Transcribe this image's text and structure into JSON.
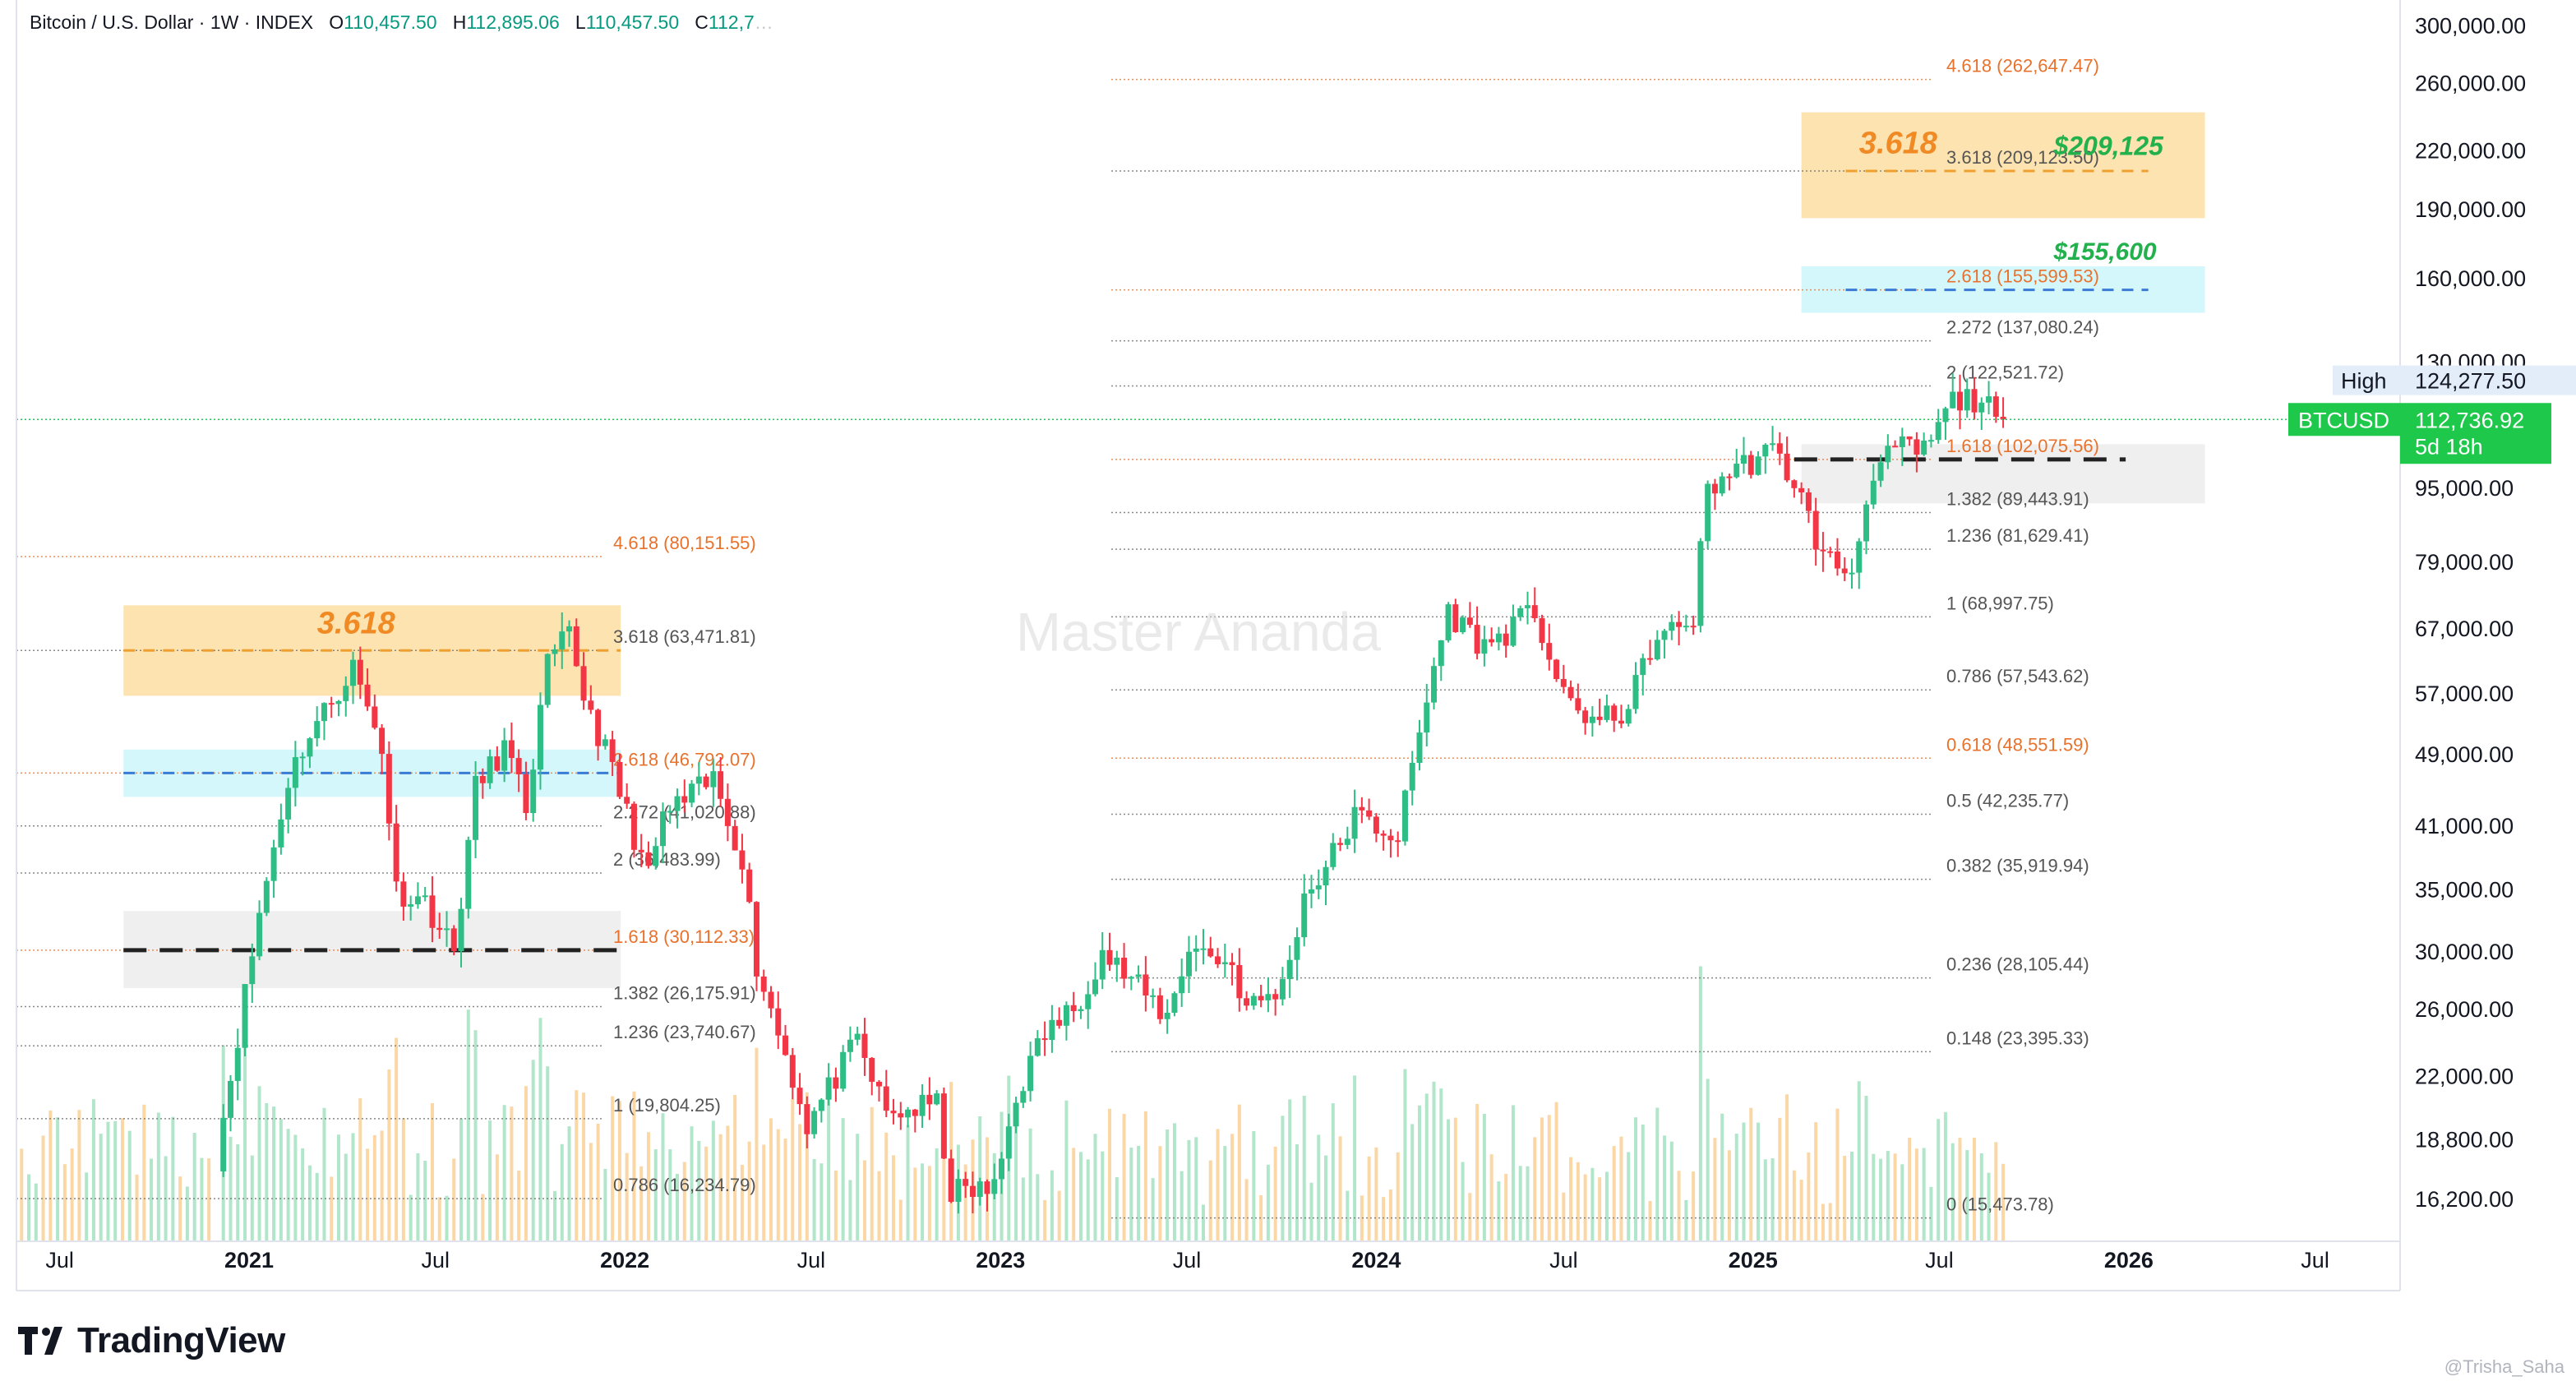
{
  "header": {
    "symbol": "Bitcoin / U.S. Dollar · 1W · INDEX",
    "open_label": "O",
    "open": "110,457.50",
    "high_label": "H",
    "high": "112,895.06",
    "low_label": "L",
    "low": "110,457.50",
    "close_label": "C",
    "close": "112,7"
  },
  "watermark": "Master Ananda",
  "brand": {
    "name": "TradingView"
  },
  "credit": "@Trisha_Saha",
  "colors": {
    "up": "#2ebd85",
    "down": "#f23645",
    "fib_orange": "#e8722c",
    "fib_gray": "#6b6b6b",
    "gold_zone": "#fde3b0",
    "cyan_zone": "#d4f7fb",
    "gray_zone": "#efefef",
    "price_line": "#22c55e",
    "green_text": "#22b14c"
  },
  "chart_data": {
    "type": "candlestick",
    "title": "Bitcoin / U.S. Dollar · 1W · INDEX",
    "y_scale": "log",
    "ylim": [
      14600,
      320000
    ],
    "xlim": [
      "2020-05-20",
      "2026-09-20"
    ],
    "y_ticks": [
      "300,000.00",
      "260,000.00",
      "220,000.00",
      "190,000.00",
      "160,000.00",
      "130,000.00",
      "95,000.00",
      "79,000.00",
      "67,000.00",
      "57,000.00",
      "49,000.00",
      "41,000.00",
      "35,000.00",
      "30,000.00",
      "26,000.00",
      "22,000.00",
      "18,800.00",
      "16,200.00"
    ],
    "x_ticks": [
      {
        "label": "Jul",
        "date": "2020-07-01",
        "bold": false
      },
      {
        "label": "2021",
        "date": "2021-01-01",
        "bold": true
      },
      {
        "label": "Jul",
        "date": "2021-07-01",
        "bold": false
      },
      {
        "label": "2022",
        "date": "2022-01-01",
        "bold": true
      },
      {
        "label": "Jul",
        "date": "2022-07-01",
        "bold": false
      },
      {
        "label": "2023",
        "date": "2023-01-01",
        "bold": true
      },
      {
        "label": "Jul",
        "date": "2023-07-01",
        "bold": false
      },
      {
        "label": "2024",
        "date": "2024-01-01",
        "bold": true
      },
      {
        "label": "Jul",
        "date": "2024-07-01",
        "bold": false
      },
      {
        "label": "2025",
        "date": "2025-01-01",
        "bold": true
      },
      {
        "label": "Jul",
        "date": "2025-07-01",
        "bold": false
      },
      {
        "label": "2026",
        "date": "2026-01-01",
        "bold": true
      },
      {
        "label": "Jul",
        "date": "2026-07-01",
        "bold": false
      }
    ],
    "price_anchors": [
      [
        "2020-11-30",
        18000
      ],
      [
        "2020-12-28",
        27000
      ],
      [
        "2021-01-11",
        33000
      ],
      [
        "2021-02-08",
        46000
      ],
      [
        "2021-02-22",
        50000
      ],
      [
        "2021-04-12",
        61000
      ],
      [
        "2021-04-26",
        55000
      ],
      [
        "2021-05-10",
        50000
      ],
      [
        "2021-05-24",
        35000
      ],
      [
        "2021-06-21",
        34000
      ],
      [
        "2021-07-19",
        30000
      ],
      [
        "2021-08-09",
        45000
      ],
      [
        "2021-09-06",
        50000
      ],
      [
        "2021-09-27",
        43000
      ],
      [
        "2021-10-18",
        61000
      ],
      [
        "2021-11-08",
        66000
      ],
      [
        "2021-11-22",
        57000
      ],
      [
        "2021-12-20",
        47000
      ],
      [
        "2022-01-24",
        36000
      ],
      [
        "2022-02-07",
        42000
      ],
      [
        "2022-03-28",
        46000
      ],
      [
        "2022-04-25",
        38000
      ],
      [
        "2022-05-09",
        29000
      ],
      [
        "2022-06-13",
        22000
      ],
      [
        "2022-06-27",
        19500
      ],
      [
        "2022-08-15",
        24000
      ],
      [
        "2022-09-12",
        20000
      ],
      [
        "2022-10-31",
        20500
      ],
      [
        "2022-11-14",
        16500
      ],
      [
        "2022-12-26",
        16600
      ],
      [
        "2023-01-16",
        21000
      ],
      [
        "2023-02-13",
        24500
      ],
      [
        "2023-03-13",
        26000
      ],
      [
        "2023-04-10",
        30000
      ],
      [
        "2023-06-12",
        25500
      ],
      [
        "2023-07-03",
        30500
      ],
      [
        "2023-08-14",
        29000
      ],
      [
        "2023-08-28",
        26000
      ],
      [
        "2023-10-02",
        27500
      ],
      [
        "2023-10-23",
        34500
      ],
      [
        "2023-11-13",
        37000
      ],
      [
        "2023-12-11",
        42000
      ],
      [
        "2024-01-22",
        40000
      ],
      [
        "2024-02-26",
        61000
      ],
      [
        "2024-03-11",
        70000
      ],
      [
        "2024-04-15",
        64000
      ],
      [
        "2024-06-03",
        70000
      ],
      [
        "2024-07-01",
        56000
      ],
      [
        "2024-08-05",
        53000
      ],
      [
        "2024-09-02",
        55000
      ],
      [
        "2024-09-23",
        64000
      ],
      [
        "2024-11-04",
        69000
      ],
      [
        "2024-11-18",
        95000
      ],
      [
        "2024-12-16",
        100000
      ],
      [
        "2025-01-20",
        104000
      ],
      [
        "2025-02-10",
        97000
      ],
      [
        "2025-03-10",
        80000
      ],
      [
        "2025-04-07",
        77000
      ],
      [
        "2025-04-21",
        94000
      ],
      [
        "2025-05-19",
        105000
      ],
      [
        "2025-06-16",
        104000
      ],
      [
        "2025-07-14",
        118000
      ],
      [
        "2025-08-11",
        119000
      ],
      [
        "2025-08-25",
        112000
      ],
      [
        "2025-09-01",
        112736.92
      ]
    ],
    "fib_2022": {
      "levels": [
        {
          "text": "4.618 (80,151.55)",
          "value": 80151.55,
          "color": "orange"
        },
        {
          "text": "3.618 (63,471.81)",
          "value": 63471.81,
          "color": "gray"
        },
        {
          "text": "2.618 (46,792.07)",
          "value": 46792.07,
          "color": "orange"
        },
        {
          "text": "2.272 (41,020.88)",
          "value": 41020.88,
          "color": "gray"
        },
        {
          "text": "2 (36,483.99)",
          "value": 36483.99,
          "color": "gray"
        },
        {
          "text": "1.618 (30,112.33)",
          "value": 30112.33,
          "color": "orange"
        },
        {
          "text": "1.382 (26,175.91)",
          "value": 26175.91,
          "color": "gray"
        },
        {
          "text": "1.236 (23,740.67)",
          "value": 23740.67,
          "color": "gray"
        },
        {
          "text": "1 (19,804.25)",
          "value": 19804.25,
          "color": "gray"
        },
        {
          "text": "0.786 (16,234.79)",
          "value": 16234.79,
          "color": "gray"
        }
      ],
      "zone_label": "3.618"
    },
    "fib_2025": {
      "levels": [
        {
          "text": "4.618 (262,647.47)",
          "value": 262647.47,
          "color": "orange"
        },
        {
          "text": "3.618 (209,123.50)",
          "value": 209123.5,
          "color": "gray"
        },
        {
          "text": "2.618 (155,599.53)",
          "value": 155599.53,
          "color": "orange"
        },
        {
          "text": "2.272 (137,080.24)",
          "value": 137080.24,
          "color": "gray"
        },
        {
          "text": "2 (122,521.72)",
          "value": 122521.72,
          "color": "gray"
        },
        {
          "text": "1.618 (102,075.56)",
          "value": 102075.56,
          "color": "orange"
        },
        {
          "text": "1.382 (89,443.91)",
          "value": 89443.91,
          "color": "gray"
        },
        {
          "text": "1.236 (81,629.41)",
          "value": 81629.41,
          "color": "gray"
        },
        {
          "text": "1 (68,997.75)",
          "value": 68997.75,
          "color": "gray"
        },
        {
          "text": "0.786 (57,543.62)",
          "value": 57543.62,
          "color": "gray"
        },
        {
          "text": "0.618 (48,551.59)",
          "value": 48551.59,
          "color": "orange"
        },
        {
          "text": "0.5 (42,235.77)",
          "value": 42235.77,
          "color": "gray"
        },
        {
          "text": "0.382 (35,919.94)",
          "value": 35919.94,
          "color": "gray"
        },
        {
          "text": "0.236 (28,105.44)",
          "value": 28105.44,
          "color": "gray"
        },
        {
          "text": "0.148 (23,395.33)",
          "value": 23395.33,
          "color": "gray"
        },
        {
          "text": "0 (15,473.78)",
          "value": 15473.78,
          "color": "gray"
        }
      ],
      "zone_label": "3.618",
      "target_high": "$209,125",
      "target_mid": "$155,600"
    },
    "markers": {
      "high_label": "High",
      "high_value_text": "124,277.50",
      "high_value": 124277.5,
      "symbol_tag": "BTCUSD",
      "last_value_text": "112,736.92",
      "last_value": 112736.92,
      "countdown": "5d 18h"
    }
  }
}
